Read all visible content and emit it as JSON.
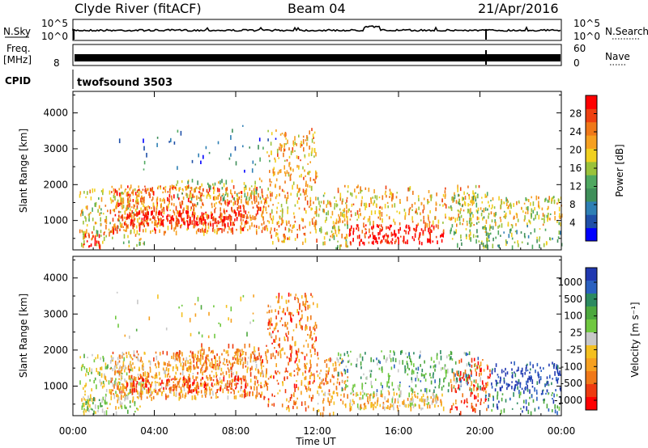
{
  "header": {
    "site": "Clyde River (fitACF)",
    "beam": "Beam 04",
    "date": "21/Apr/2016"
  },
  "status_panels": {
    "noise": {
      "left_label": "N.Sky",
      "right_label": "N.Search",
      "left_ticks": [
        "10^5",
        "10^0"
      ],
      "right_ticks": [
        "10^5",
        "10^0"
      ]
    },
    "freq": {
      "left_label_1": "Freq.",
      "left_label_2": "[MHz]",
      "right_label": "Nave",
      "left_ticks": [
        "8"
      ],
      "right_ticks": [
        "60",
        "0"
      ]
    },
    "cpid": {
      "label": "CPID",
      "value": "twofsound 3503"
    }
  },
  "colors": {
    "power_scale": [
      "#0000ff",
      "#1f4fa8",
      "#2e7fb4",
      "#3f8f5a",
      "#4fa860",
      "#9ac23a",
      "#f0d020",
      "#f6a020",
      "#f07818",
      "#ee4010",
      "#ff0000"
    ],
    "velocity_scale": [
      "#2038b0",
      "#2a60c0",
      "#2c8a60",
      "#4ca83e",
      "#70c840",
      "#c8c8c8",
      "#f4c020",
      "#f6a020",
      "#f07818",
      "#ee3a10",
      "#ff0000"
    ]
  },
  "chart_data": [
    {
      "type": "heatmap",
      "title": "",
      "xlabel": "Time UT",
      "ylabel": "Slant Range [km]",
      "x_ticks": [
        "00:00",
        "04:00",
        "08:00",
        "12:00",
        "16:00",
        "20:00",
        "00:00"
      ],
      "x_range_hours": [
        0,
        24
      ],
      "y_ticks": [
        1000,
        2000,
        3000,
        4000
      ],
      "ylim": [
        180,
        4600
      ],
      "colorbar": {
        "label": "Power [dB]",
        "ticks": [
          4,
          8,
          12,
          16,
          20,
          24,
          28
        ],
        "range": [
          0,
          32
        ]
      }
    },
    {
      "type": "heatmap",
      "title": "",
      "xlabel": "Time UT",
      "ylabel": "Slant Range [km]",
      "x_ticks": [
        "00:00",
        "04:00",
        "08:00",
        "12:00",
        "16:00",
        "20:00",
        "00:00"
      ],
      "x_range_hours": [
        0,
        24
      ],
      "y_ticks": [
        1000,
        2000,
        3000,
        4000
      ],
      "ylim": [
        180,
        4600
      ],
      "colorbar": {
        "label": "Velocity [m s⁻¹]",
        "ticks": [
          1000,
          500,
          100,
          25,
          -25,
          -100,
          -500,
          -1000
        ]
      }
    }
  ]
}
